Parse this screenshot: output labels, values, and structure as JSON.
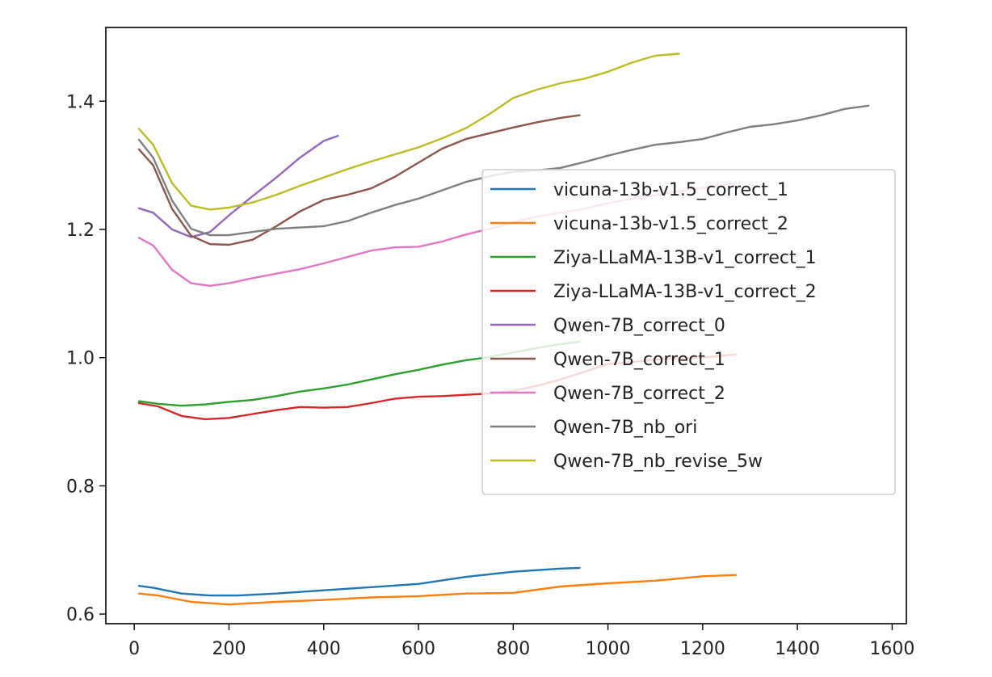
{
  "chart_data": {
    "type": "line",
    "title": "",
    "xlabel": "",
    "ylabel": "",
    "xlim": [
      -60,
      1630
    ],
    "ylim": [
      0.585,
      1.515
    ],
    "xticks": [
      0,
      200,
      400,
      600,
      800,
      1000,
      1200,
      1400,
      1600
    ],
    "yticks": [
      0.6,
      0.8,
      1.0,
      1.2,
      1.4
    ],
    "xtick_labels": [
      "0",
      "200",
      "400",
      "600",
      "800",
      "1000",
      "1200",
      "1400",
      "1600"
    ],
    "ytick_labels": [
      "0.6",
      "0.8",
      "1.0",
      "1.2",
      "1.4"
    ],
    "grid": false,
    "legend_position": "center-right",
    "series": [
      {
        "name": "vicuna-13b-v1.5_correct_1",
        "color": "#1f77b4",
        "x": [
          10,
          40,
          100,
          160,
          220,
          300,
          400,
          500,
          600,
          700,
          800,
          900,
          940
        ],
        "y": [
          0.644,
          0.641,
          0.632,
          0.629,
          0.629,
          0.632,
          0.637,
          0.642,
          0.647,
          0.658,
          0.666,
          0.671,
          0.672
        ]
      },
      {
        "name": "vicuna-13b-v1.5_correct_2",
        "color": "#ff7f0e",
        "x": [
          10,
          50,
          120,
          200,
          300,
          400,
          500,
          600,
          700,
          800,
          900,
          1000,
          1100,
          1200,
          1270
        ],
        "y": [
          0.632,
          0.629,
          0.619,
          0.615,
          0.619,
          0.622,
          0.626,
          0.628,
          0.632,
          0.633,
          0.643,
          0.648,
          0.652,
          0.659,
          0.661
        ]
      },
      {
        "name": "Ziya-LLaMA-13B-v1_correct_1",
        "color": "#2ca02c",
        "x": [
          10,
          50,
          100,
          150,
          200,
          250,
          300,
          350,
          400,
          450,
          500,
          550,
          600,
          650,
          700,
          750,
          800,
          850,
          900,
          940
        ],
        "y": [
          0.932,
          0.928,
          0.925,
          0.927,
          0.931,
          0.934,
          0.94,
          0.947,
          0.952,
          0.958,
          0.966,
          0.974,
          0.981,
          0.989,
          0.996,
          1.001,
          1.008,
          1.015,
          1.021,
          1.025
        ]
      },
      {
        "name": "Ziya-LLaMA-13B-v1_correct_2",
        "color": "#d62728",
        "x": [
          10,
          50,
          100,
          150,
          200,
          250,
          300,
          350,
          400,
          450,
          500,
          550,
          600,
          650,
          700,
          750,
          800,
          850,
          900,
          950,
          1000,
          1050,
          1100,
          1150,
          1200,
          1270
        ],
        "y": [
          0.929,
          0.924,
          0.909,
          0.904,
          0.906,
          0.912,
          0.918,
          0.923,
          0.922,
          0.923,
          0.929,
          0.936,
          0.939,
          0.94,
          0.942,
          0.944,
          0.948,
          0.956,
          0.966,
          0.978,
          0.99,
          0.993,
          0.997,
          0.999,
          1.0,
          1.005
        ]
      },
      {
        "name": "Qwen-7B_correct_0",
        "color": "#9467bd",
        "x": [
          10,
          40,
          80,
          120,
          160,
          200,
          250,
          300,
          350,
          400,
          430
        ],
        "y": [
          1.233,
          1.226,
          1.2,
          1.188,
          1.196,
          1.222,
          1.252,
          1.281,
          1.312,
          1.338,
          1.346
        ]
      },
      {
        "name": "Qwen-7B_correct_1",
        "color": "#8c564b",
        "x": [
          10,
          40,
          80,
          120,
          160,
          200,
          250,
          300,
          350,
          400,
          450,
          500,
          550,
          600,
          650,
          700,
          750,
          800,
          850,
          900,
          940
        ],
        "y": [
          1.325,
          1.3,
          1.232,
          1.19,
          1.177,
          1.176,
          1.184,
          1.205,
          1.228,
          1.246,
          1.254,
          1.264,
          1.282,
          1.304,
          1.326,
          1.341,
          1.35,
          1.359,
          1.367,
          1.374,
          1.378
        ]
      },
      {
        "name": "Qwen-7B_correct_2",
        "color": "#e377c2",
        "x": [
          10,
          40,
          80,
          120,
          160,
          200,
          250,
          300,
          350,
          400,
          450,
          500,
          550,
          600,
          650,
          700,
          750,
          800,
          850,
          900,
          950,
          1000,
          1050,
          1100,
          1150,
          1200,
          1270
        ],
        "y": [
          1.187,
          1.175,
          1.137,
          1.116,
          1.112,
          1.116,
          1.124,
          1.131,
          1.138,
          1.147,
          1.157,
          1.167,
          1.172,
          1.173,
          1.181,
          1.192,
          1.201,
          1.211,
          1.22,
          1.226,
          1.232,
          1.241,
          1.248,
          1.253,
          1.26,
          1.265,
          1.272
        ]
      },
      {
        "name": "Qwen-7B_nb_ori",
        "color": "#7f7f7f",
        "x": [
          10,
          40,
          80,
          120,
          160,
          200,
          250,
          300,
          350,
          400,
          450,
          500,
          550,
          600,
          650,
          700,
          750,
          800,
          850,
          900,
          950,
          1000,
          1050,
          1100,
          1150,
          1200,
          1250,
          1300,
          1350,
          1400,
          1450,
          1500,
          1550
        ],
        "y": [
          1.34,
          1.312,
          1.245,
          1.201,
          1.191,
          1.191,
          1.196,
          1.201,
          1.203,
          1.205,
          1.213,
          1.226,
          1.238,
          1.248,
          1.261,
          1.274,
          1.283,
          1.29,
          1.292,
          1.296,
          1.305,
          1.315,
          1.324,
          1.332,
          1.336,
          1.341,
          1.351,
          1.36,
          1.364,
          1.37,
          1.378,
          1.388,
          1.393
        ]
      },
      {
        "name": "Qwen-7B_nb_revise_5w",
        "color": "#bcbd22",
        "x": [
          10,
          40,
          80,
          120,
          160,
          200,
          250,
          300,
          350,
          400,
          450,
          500,
          550,
          600,
          650,
          700,
          750,
          800,
          850,
          900,
          950,
          1000,
          1050,
          1100,
          1150
        ],
        "y": [
          1.357,
          1.332,
          1.272,
          1.237,
          1.231,
          1.234,
          1.242,
          1.254,
          1.268,
          1.281,
          1.294,
          1.306,
          1.317,
          1.328,
          1.342,
          1.358,
          1.38,
          1.405,
          1.418,
          1.428,
          1.435,
          1.446,
          1.46,
          1.471,
          1.474
        ]
      }
    ]
  }
}
